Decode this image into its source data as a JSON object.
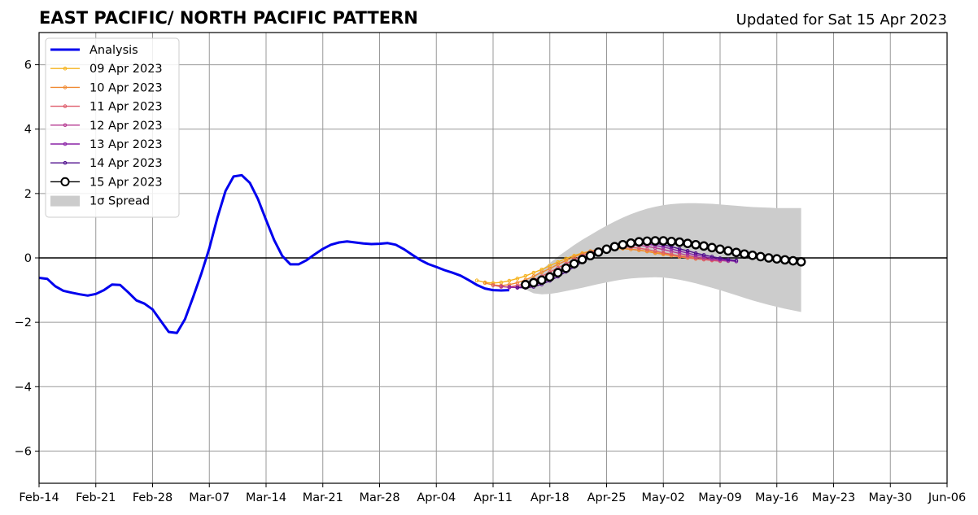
{
  "chart_data": {
    "type": "line",
    "title": "EAST PACIFIC/ NORTH PACIFIC PATTERN",
    "subtitle": "Updated for Sat 15 Apr 2023",
    "xlabel": "",
    "ylabel": "",
    "xlim": [
      "2023-02-14",
      "2023-06-06"
    ],
    "ylim": [
      -7,
      7
    ],
    "grid": true,
    "legend_position": "top-left",
    "x_ticks": [
      "Feb-14",
      "Feb-21",
      "Feb-28",
      "Mar-07",
      "Mar-14",
      "Mar-21",
      "Mar-28",
      "Apr-04",
      "Apr-11",
      "Apr-18",
      "Apr-25",
      "May-02",
      "May-09",
      "May-16",
      "May-23",
      "May-30",
      "Jun-06"
    ],
    "y_ticks": [
      6,
      4,
      2,
      0,
      -2,
      -4,
      -6
    ],
    "y_tick_labels": [
      "6",
      "4",
      "2",
      "0",
      "−2",
      "−4",
      "−6"
    ],
    "series": [
      {
        "name": "Analysis",
        "color": "#0000ee",
        "style": "thick-line",
        "start_date": "2023-02-14",
        "values": [
          -0.62,
          -0.65,
          -0.88,
          -1.02,
          -1.08,
          -1.13,
          -1.17,
          -1.12,
          -1.0,
          -0.83,
          -0.84,
          -1.07,
          -1.32,
          -1.42,
          -1.6,
          -1.95,
          -2.3,
          -2.33,
          -1.9,
          -1.22,
          -0.5,
          0.3,
          1.25,
          2.08,
          2.53,
          2.57,
          2.33,
          1.83,
          1.18,
          0.55,
          0.06,
          -0.2,
          -0.2,
          -0.07,
          0.11,
          0.28,
          0.41,
          0.48,
          0.51,
          0.48,
          0.45,
          0.43,
          0.44,
          0.46,
          0.41,
          0.27,
          0.1,
          -0.06,
          -0.19,
          -0.28,
          -0.38,
          -0.46,
          -0.55,
          -0.69,
          -0.84,
          -0.95,
          -1.0,
          -1.01,
          -1.0
        ]
      },
      {
        "name": "09 Apr 2023",
        "color": "#f5b21b",
        "style": "thin-dots",
        "start_date": "2023-04-09",
        "values": [
          -0.7,
          -0.76,
          -0.78,
          -0.76,
          -0.71,
          -0.64,
          -0.56,
          -0.46,
          -0.36,
          -0.24,
          -0.13,
          -0.02,
          0.07,
          0.15,
          0.21,
          0.25,
          0.28,
          0.29,
          0.29,
          0.27,
          0.24,
          0.21,
          0.17,
          0.13,
          0.1,
          0.07,
          0.04,
          0.02,
          0.0
        ]
      },
      {
        "name": "10 Apr 2023",
        "color": "#f08a33",
        "style": "thin-dots",
        "start_date": "2023-04-10",
        "values": [
          -0.78,
          -0.84,
          -0.86,
          -0.83,
          -0.77,
          -0.68,
          -0.57,
          -0.45,
          -0.33,
          -0.2,
          -0.08,
          0.03,
          0.13,
          0.21,
          0.26,
          0.29,
          0.3,
          0.29,
          0.27,
          0.24,
          0.2,
          0.15,
          0.11,
          0.07,
          0.03,
          0.0,
          -0.03,
          -0.05,
          -0.07
        ]
      },
      {
        "name": "11 Apr 2023",
        "color": "#de5a6a",
        "style": "thin-dots",
        "start_date": "2023-04-11",
        "values": [
          -0.85,
          -0.9,
          -0.9,
          -0.86,
          -0.79,
          -0.69,
          -0.57,
          -0.44,
          -0.31,
          -0.18,
          -0.05,
          0.07,
          0.17,
          0.25,
          0.3,
          0.33,
          0.34,
          0.33,
          0.3,
          0.26,
          0.21,
          0.16,
          0.11,
          0.06,
          0.02,
          -0.02,
          -0.05,
          -0.08,
          -0.1
        ]
      },
      {
        "name": "12 Apr 2023",
        "color": "#b63b92",
        "style": "thin-dots",
        "start_date": "2023-04-12",
        "values": [
          -0.88,
          -0.92,
          -0.91,
          -0.86,
          -0.78,
          -0.67,
          -0.54,
          -0.41,
          -0.27,
          -0.13,
          0.0,
          0.12,
          0.22,
          0.3,
          0.36,
          0.39,
          0.4,
          0.39,
          0.36,
          0.31,
          0.26,
          0.2,
          0.14,
          0.08,
          0.03,
          -0.01,
          -0.05,
          -0.08,
          -0.1
        ]
      },
      {
        "name": "13 Apr 2023",
        "color": "#8a22a6",
        "style": "thin-dots",
        "start_date": "2023-04-13",
        "values": [
          -0.9,
          -0.93,
          -0.91,
          -0.85,
          -0.76,
          -0.64,
          -0.5,
          -0.36,
          -0.21,
          -0.07,
          0.06,
          0.18,
          0.28,
          0.36,
          0.41,
          0.44,
          0.45,
          0.43,
          0.39,
          0.34,
          0.28,
          0.21,
          0.15,
          0.09,
          0.04,
          -0.01,
          -0.05,
          -0.08,
          -0.11
        ]
      },
      {
        "name": "14 Apr 2023",
        "color": "#4f0e8c",
        "style": "thin-dots",
        "start_date": "2023-04-14",
        "values": [
          -0.92,
          -0.93,
          -0.9,
          -0.82,
          -0.71,
          -0.58,
          -0.43,
          -0.28,
          -0.13,
          0.02,
          0.15,
          0.27,
          0.36,
          0.43,
          0.47,
          0.49,
          0.48,
          0.45,
          0.41,
          0.35,
          0.28,
          0.22,
          0.15,
          0.09,
          0.04,
          -0.01,
          -0.05,
          -0.08
        ]
      },
      {
        "name": "15 Apr 2023",
        "color": "#000000",
        "style": "circles",
        "start_date": "2023-04-15",
        "values": [
          -0.83,
          -0.77,
          -0.69,
          -0.59,
          -0.46,
          -0.32,
          -0.18,
          -0.05,
          0.07,
          0.18,
          0.27,
          0.35,
          0.41,
          0.46,
          0.5,
          0.52,
          0.53,
          0.53,
          0.51,
          0.49,
          0.45,
          0.41,
          0.37,
          0.32,
          0.27,
          0.22,
          0.17,
          0.12,
          0.08,
          0.04,
          0.0,
          -0.03,
          -0.06,
          -0.09,
          -0.12
        ]
      }
    ],
    "spread": {
      "name": "1σ Spread",
      "color": "#cccccc",
      "start_date": "2023-04-15",
      "upper": [
        -0.72,
        -0.55,
        -0.37,
        -0.16,
        0.04,
        0.22,
        0.4,
        0.56,
        0.71,
        0.86,
        1.0,
        1.13,
        1.25,
        1.36,
        1.45,
        1.53,
        1.59,
        1.64,
        1.67,
        1.69,
        1.7,
        1.7,
        1.69,
        1.68,
        1.66,
        1.64,
        1.62,
        1.6,
        1.58,
        1.57,
        1.56,
        1.55,
        1.55,
        1.55,
        1.55
      ],
      "lower": [
        -0.98,
        -1.1,
        -1.13,
        -1.12,
        -1.08,
        -1.03,
        -0.98,
        -0.93,
        -0.87,
        -0.81,
        -0.76,
        -0.71,
        -0.67,
        -0.64,
        -0.62,
        -0.61,
        -0.6,
        -0.61,
        -0.64,
        -0.68,
        -0.73,
        -0.79,
        -0.86,
        -0.93,
        -1.0,
        -1.08,
        -1.16,
        -1.24,
        -1.32,
        -1.39,
        -1.46,
        -1.52,
        -1.58,
        -1.63,
        -1.68
      ]
    }
  }
}
